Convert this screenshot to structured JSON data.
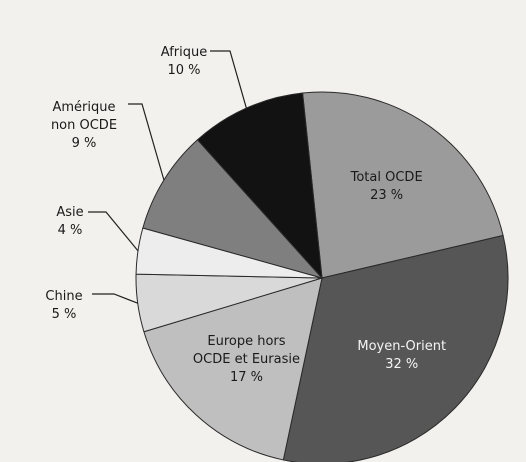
{
  "chart_data": {
    "type": "pie",
    "categories": [
      "Total OCDE",
      "Moyen-Orient",
      "Europe hors OCDE et Eurasie",
      "Chine",
      "Asie",
      "Amérique non OCDE",
      "Afrique"
    ],
    "values": [
      23,
      32,
      17,
      5,
      4,
      9,
      10
    ],
    "value_labels": [
      "23 %",
      "32 %",
      "17 %",
      "5 %",
      "4 %",
      "9 %",
      "10 %"
    ],
    "colors": [
      "#9b9b9b",
      "#565656",
      "#bfbfbf",
      "#d9d9d9",
      "#ededed",
      "#7f7f7f",
      "#121212"
    ]
  }
}
